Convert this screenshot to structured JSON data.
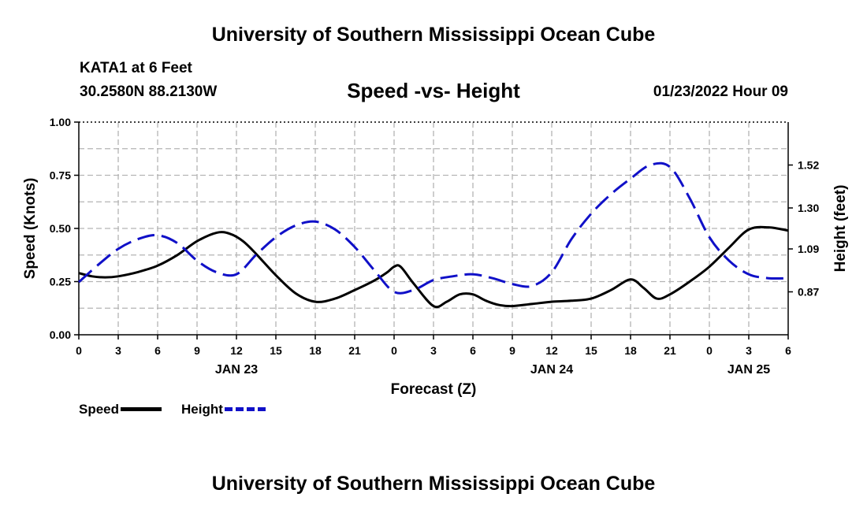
{
  "header": {
    "title": "University of Southern Mississippi Ocean Cube",
    "station": "KATA1 at 6 Feet",
    "coords": "30.2580N  88.2130W",
    "run_time": "01/23/2022 Hour 09"
  },
  "footer": {
    "title": "University of Southern Mississippi Ocean Cube"
  },
  "legend": {
    "speed_label": "Speed",
    "height_label": "Height"
  },
  "colors": {
    "speed": "#000000",
    "height": "#1010c8",
    "grid": "#b4b4b4"
  },
  "chart_data": {
    "type": "line",
    "title": "Speed -vs- Height",
    "xlabel": "Forecast (Z)",
    "ylabel": "Speed (Knots)",
    "y2label": "Height (feet)",
    "x_unit": "hours",
    "xlim": [
      0,
      54
    ],
    "x_ticks": [
      0,
      3,
      6,
      9,
      12,
      15,
      18,
      21,
      24,
      27,
      30,
      33,
      36,
      39,
      42,
      45,
      48,
      51,
      54
    ],
    "x_tick_labels": [
      "0",
      "3",
      "6",
      "9",
      "12",
      "15",
      "18",
      "21",
      "0",
      "3",
      "6",
      "9",
      "12",
      "15",
      "18",
      "21",
      "0",
      "3",
      "6"
    ],
    "date_labels": [
      {
        "x": 12,
        "label": "JAN 23"
      },
      {
        "x": 36,
        "label": "JAN 24"
      },
      {
        "x": 51,
        "label": "JAN 25"
      }
    ],
    "ylim": [
      0,
      1.0
    ],
    "y_ticks": [
      0,
      0.25,
      0.5,
      0.75,
      1.0
    ],
    "y_tick_labels": [
      "0.00",
      "0.25",
      "0.50",
      "0.75",
      "1.00"
    ],
    "y2lim": [
      0.65,
      1.74
    ],
    "y2_ticks": [
      0.87,
      1.09,
      1.3,
      1.52
    ],
    "y2_tick_labels": [
      "0.87",
      "1.09",
      "1.30",
      "1.52"
    ],
    "grid": true,
    "series": [
      {
        "name": "Speed",
        "axis": "left",
        "style": "solid",
        "x": [
          0,
          1,
          2,
          3,
          4.5,
          6,
          7.5,
          9,
          10.5,
          11.5,
          12.5,
          13.5,
          15,
          16.5,
          18,
          19.5,
          21,
          22.5,
          23.5,
          24,
          24.5,
          25.5,
          27,
          28,
          29,
          30,
          31,
          32,
          33,
          34.5,
          36,
          37.5,
          39,
          40.5,
          42,
          43,
          44,
          45,
          46.5,
          48,
          49.5,
          51,
          52.5,
          54
        ],
        "values": [
          0.29,
          0.275,
          0.27,
          0.275,
          0.295,
          0.325,
          0.375,
          0.44,
          0.48,
          0.475,
          0.44,
          0.38,
          0.28,
          0.195,
          0.155,
          0.17,
          0.21,
          0.255,
          0.295,
          0.32,
          0.32,
          0.24,
          0.135,
          0.155,
          0.19,
          0.19,
          0.16,
          0.14,
          0.135,
          0.145,
          0.155,
          0.16,
          0.17,
          0.21,
          0.26,
          0.22,
          0.17,
          0.19,
          0.25,
          0.32,
          0.41,
          0.495,
          0.505,
          0.49
        ]
      },
      {
        "name": "Height",
        "axis": "right",
        "style": "dashed",
        "x": [
          0,
          1.5,
          3,
          4.5,
          6,
          7.5,
          9,
          10.5,
          12,
          13.5,
          15,
          16.5,
          18,
          19.5,
          21,
          22.5,
          24,
          25.5,
          27,
          28.5,
          30,
          31.5,
          33,
          34.5,
          36,
          37.5,
          39,
          40.5,
          42,
          43.5,
          45,
          46.5,
          48,
          49.5,
          51,
          52.5,
          54
        ],
        "values": [
          0.92,
          1.01,
          1.09,
          1.14,
          1.16,
          1.12,
          1.03,
          0.97,
          0.96,
          1.06,
          1.15,
          1.21,
          1.23,
          1.19,
          1.1,
          0.98,
          0.87,
          0.88,
          0.93,
          0.95,
          0.96,
          0.94,
          0.91,
          0.9,
          0.97,
          1.14,
          1.27,
          1.37,
          1.45,
          1.52,
          1.51,
          1.35,
          1.15,
          1.03,
          0.96,
          0.94,
          0.94
        ]
      }
    ]
  }
}
